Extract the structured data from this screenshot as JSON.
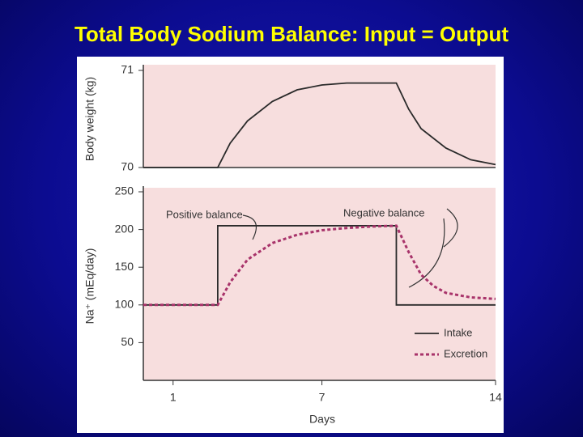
{
  "title": "Total Body Sodium Balance:  Input = Output",
  "chart_data": [
    {
      "type": "line",
      "y_label": "Body weight (kg)",
      "xlim": [
        -0.2,
        14
      ],
      "ylim": [
        70,
        71
      ],
      "yticks": [
        70,
        71
      ],
      "series": [
        {
          "name": "Body weight",
          "color": "#2a2a2a",
          "x": [
            -0.2,
            2.8,
            3.3,
            4,
            5,
            6,
            7,
            8,
            10,
            10.5,
            11,
            12,
            13,
            14
          ],
          "values": [
            70,
            70,
            70.25,
            70.48,
            70.68,
            70.8,
            70.85,
            70.87,
            70.87,
            70.6,
            70.4,
            70.2,
            70.08,
            70.03
          ]
        }
      ]
    },
    {
      "type": "line",
      "y_label": "Na⁺ (mEq/day)",
      "x_label": "Days",
      "xlim": [
        -0.2,
        14
      ],
      "ylim": [
        0,
        250
      ],
      "xticks": [
        1,
        7,
        14
      ],
      "yticks": [
        50,
        100,
        150,
        200,
        250
      ],
      "legend": "lower right",
      "annotations": [
        "Positive balance",
        "Negative balance"
      ],
      "series": [
        {
          "name": "Intake",
          "color": "#2a2a2a",
          "dash": false,
          "x": [
            -0.2,
            2.8,
            2.8,
            10,
            10,
            14
          ],
          "values": [
            100,
            100,
            205,
            205,
            100,
            100
          ]
        },
        {
          "name": "Excretion",
          "color": "#a8336a",
          "dash": true,
          "x": [
            -0.2,
            2.8,
            3.3,
            4,
            5,
            6,
            7,
            8,
            9,
            10,
            10.5,
            11,
            11.5,
            12,
            13,
            14
          ],
          "values": [
            100,
            100,
            130,
            160,
            182,
            193,
            199,
            202,
            204,
            205,
            170,
            140,
            125,
            116,
            110,
            108
          ]
        }
      ]
    }
  ]
}
